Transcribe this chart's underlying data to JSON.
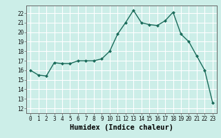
{
  "x": [
    0,
    1,
    2,
    3,
    4,
    5,
    6,
    7,
    8,
    9,
    10,
    11,
    12,
    13,
    14,
    15,
    16,
    17,
    18,
    19,
    20,
    21,
    22,
    23
  ],
  "y": [
    16.0,
    15.5,
    15.4,
    16.8,
    16.7,
    16.7,
    17.0,
    17.0,
    17.0,
    17.2,
    18.0,
    19.8,
    21.0,
    22.3,
    21.0,
    20.8,
    20.7,
    21.2,
    22.1,
    19.8,
    19.0,
    17.5,
    16.0,
    12.6
  ],
  "line_color": "#1a6b5a",
  "marker": "D",
  "markersize": 2.0,
  "linewidth": 1.0,
  "xlabel": "Humidex (Indice chaleur)",
  "xlim": [
    -0.5,
    23.5
  ],
  "ylim": [
    11.5,
    22.8
  ],
  "yticks": [
    12,
    13,
    14,
    15,
    16,
    17,
    18,
    19,
    20,
    21,
    22
  ],
  "xticks": [
    0,
    1,
    2,
    3,
    4,
    5,
    6,
    7,
    8,
    9,
    10,
    11,
    12,
    13,
    14,
    15,
    16,
    17,
    18,
    19,
    20,
    21,
    22,
    23
  ],
  "bg_color": "#cceee8",
  "grid_color": "#ffffff",
  "tick_label_fontsize": 5.5,
  "xlabel_fontsize": 7.5
}
